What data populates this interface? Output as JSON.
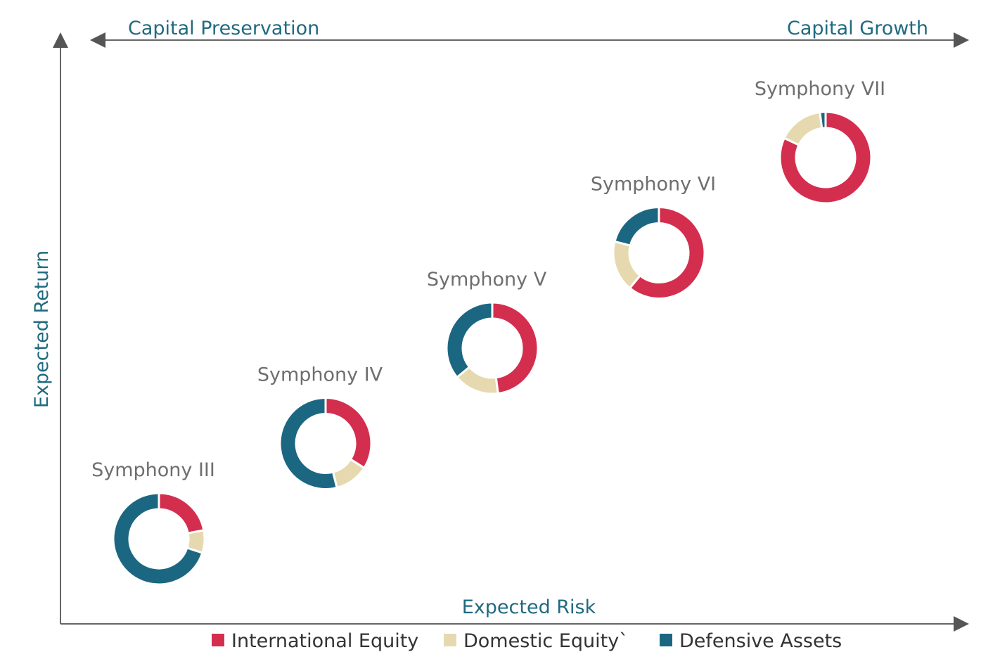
{
  "chart_data": {
    "type": "pie",
    "variant": "donut-scatter",
    "title": "",
    "xlabel": "Expected Risk",
    "ylabel": "Expected Return",
    "top_axis": {
      "left_label": "Capital Preservation",
      "right_label": "Capital Growth"
    },
    "series_names": [
      "International Equity",
      "Domestic Equity`",
      "Defensive Assets"
    ],
    "colors": [
      "#d42e4e",
      "#e6d9b0",
      "#1b6781"
    ],
    "legend_position": "bottom",
    "portfolios": [
      {
        "name": "Symphony III",
        "risk": 1,
        "return": 1,
        "allocation": [
          22,
          8,
          70
        ]
      },
      {
        "name": "Symphony IV",
        "risk": 2,
        "return": 2,
        "allocation": [
          34,
          12,
          54
        ]
      },
      {
        "name": "Symphony V",
        "risk": 3,
        "return": 3,
        "allocation": [
          48,
          16,
          36
        ]
      },
      {
        "name": "Symphony VI",
        "risk": 4,
        "return": 4,
        "allocation": [
          61,
          18,
          21
        ]
      },
      {
        "name": "Symphony VII",
        "risk": 5,
        "return": 5,
        "allocation": [
          82,
          16,
          2
        ]
      }
    ]
  }
}
